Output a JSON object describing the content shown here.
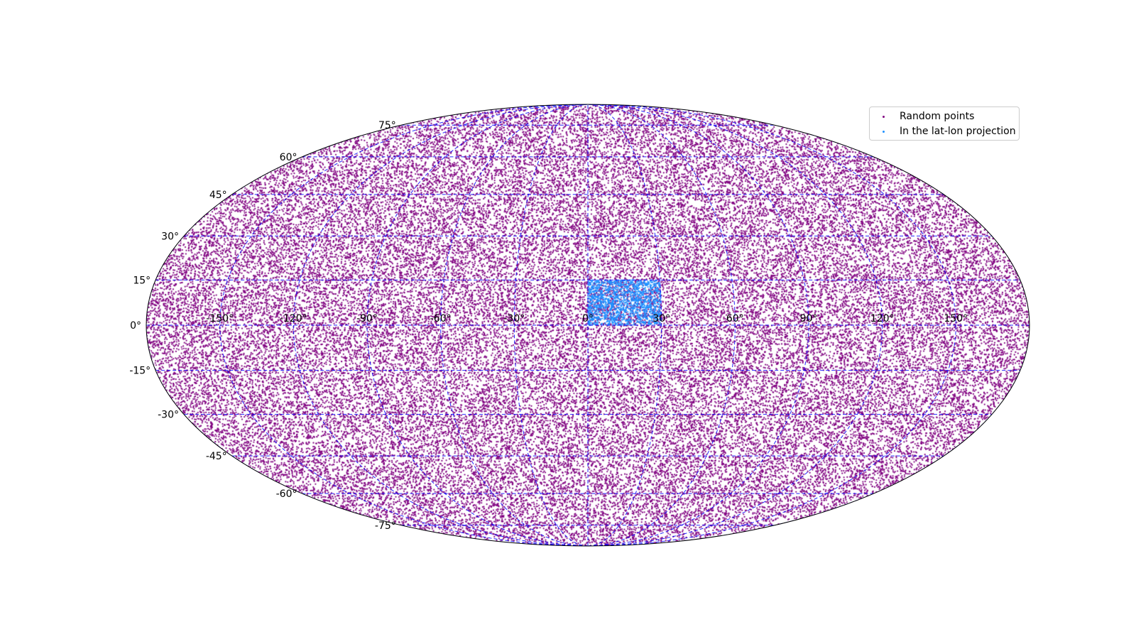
{
  "chart_data": {
    "type": "scatter",
    "projection": "mollweide",
    "title": "",
    "xlabel": "",
    "ylabel": "",
    "xlim": [
      -180,
      180
    ],
    "ylim": [
      -90,
      90
    ],
    "grid": true,
    "grid_color": "#0000ff",
    "legend_position": "top-right",
    "x_tick_labels": [
      "-150°",
      "-120°",
      "-90°",
      "-60°",
      "-30°",
      "0°",
      "30°",
      "60°",
      "90°",
      "120°",
      "150°"
    ],
    "x_tick_values": [
      -150,
      -120,
      -90,
      -60,
      -30,
      0,
      30,
      60,
      90,
      120,
      150
    ],
    "y_tick_labels": [
      "-75°",
      "-60°",
      "-45°",
      "-30°",
      "-15°",
      "0°",
      "15°",
      "30°",
      "45°",
      "60°",
      "75°"
    ],
    "y_tick_values": [
      -75,
      -60,
      -45,
      -30,
      -15,
      0,
      15,
      30,
      45,
      60,
      75
    ],
    "series": [
      {
        "name": "Random points",
        "color": "#800080",
        "distribution": "uniform over the sphere",
        "lon_range": [
          -180,
          180
        ],
        "lat_range": [
          -90,
          90
        ],
        "count": 60000
      },
      {
        "name": "In the lat-lon projection",
        "color": "#1e90ff",
        "distribution": "uniform inside lat-lon box",
        "lon_range": [
          0,
          30
        ],
        "lat_range": [
          0,
          15
        ],
        "count": 1500
      }
    ]
  }
}
